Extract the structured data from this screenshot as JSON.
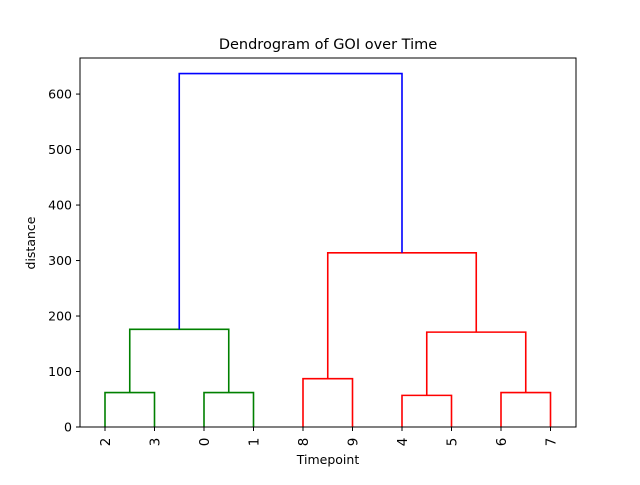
{
  "chart_data": {
    "type": "dendrogram",
    "title": "Dendrogram of GOI over Time",
    "xlabel": "Timepoint",
    "ylabel": "distance",
    "ylim": [
      0,
      665
    ],
    "yticks": [
      0,
      100,
      200,
      300,
      400,
      500,
      600
    ],
    "leaf_order": [
      "2",
      "3",
      "0",
      "1",
      "8",
      "9",
      "4",
      "5",
      "6",
      "7"
    ],
    "grid": false,
    "links": [
      {
        "left": 0,
        "right": 1,
        "height": 62,
        "color": "#008000"
      },
      {
        "left": 2,
        "right": 3,
        "height": 62,
        "color": "#008000"
      },
      {
        "left": 0.5,
        "right": 2.5,
        "height": 176,
        "color": "#008000"
      },
      {
        "left": 4,
        "right": 5,
        "height": 87,
        "color": "#ff0000"
      },
      {
        "left": 6,
        "right": 7,
        "height": 57,
        "color": "#ff0000"
      },
      {
        "left": 8,
        "right": 9,
        "height": 62,
        "color": "#ff0000"
      },
      {
        "left": 6.5,
        "right": 8.5,
        "height": 171,
        "color": "#ff0000"
      },
      {
        "left": 4.5,
        "right": 7.5,
        "height": 314,
        "color": "#ff0000"
      },
      {
        "left": 1.5,
        "right": 6,
        "height": 637,
        "color": "#0000ff"
      }
    ],
    "link_bottoms": [
      [
        0,
        0
      ],
      [
        0,
        0
      ],
      [
        62,
        62
      ],
      [
        0,
        0
      ],
      [
        0,
        0
      ],
      [
        0,
        0
      ],
      [
        57,
        62
      ],
      [
        87,
        171
      ],
      [
        176,
        314
      ]
    ]
  }
}
